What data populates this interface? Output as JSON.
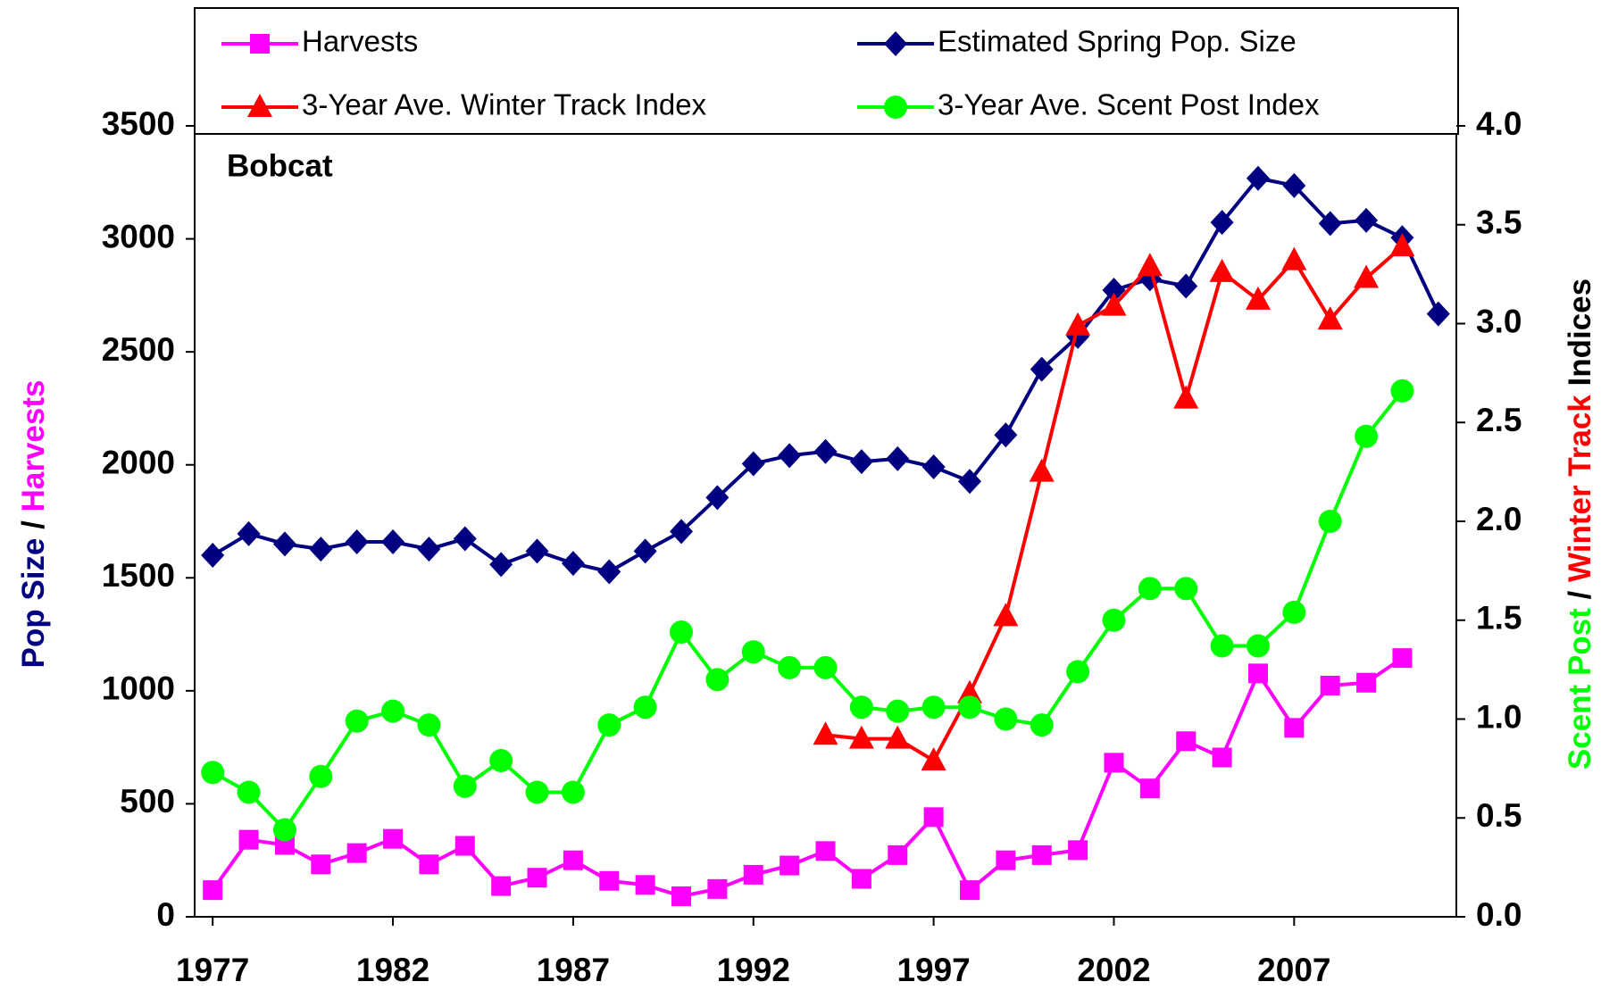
{
  "chart_data": {
    "type": "line",
    "annotation": "Bobcat",
    "y_label": [
      {
        "text": "Pop Size",
        "color": "#000080"
      },
      {
        "text": "/",
        "color": "#000000"
      },
      {
        "text": "Harvests",
        "color": "#ff00ff"
      }
    ],
    "y2_label": [
      {
        "text": "Scent Post",
        "color": "#00ff00"
      },
      {
        "text": "/",
        "color": "#000000"
      },
      {
        "text": "Winter Track",
        "color": "#ff0000"
      },
      {
        "text": "Indices",
        "color": "#000000"
      }
    ],
    "x": [
      1977,
      1978,
      1979,
      1980,
      1981,
      1982,
      1983,
      1984,
      1985,
      1986,
      1987,
      1988,
      1989,
      1990,
      1991,
      1992,
      1993,
      1994,
      1995,
      1996,
      1997,
      1998,
      1999,
      2000,
      2001,
      2002,
      2003,
      2004,
      2005,
      2006,
      2007,
      2008,
      2009,
      2010,
      2011
    ],
    "xlim": [
      1976.5,
      2011.5
    ],
    "xticks": [
      1977,
      1982,
      1987,
      1992,
      1997,
      2002,
      2007
    ],
    "ylim": [
      0,
      3500
    ],
    "yticks": [
      0,
      500,
      1000,
      1500,
      2000,
      2500,
      3000,
      3500
    ],
    "y2lim": [
      0,
      4
    ],
    "y2ticks": [
      {
        "value": 0,
        "label": "0.0"
      },
      0.5,
      {
        "value": 1,
        "label": "1.0"
      },
      1.5,
      {
        "value": 2,
        "label": "2.0"
      },
      2.5,
      {
        "value": 3,
        "label": "3.0"
      },
      3.5,
      {
        "value": 4,
        "label": "4.0"
      }
    ],
    "series": [
      {
        "name": "Harvests",
        "color": "#ff00ff",
        "marker": "square",
        "values": [
          118,
          341,
          318,
          232,
          282,
          345,
          232,
          314,
          136,
          173,
          250,
          159,
          141,
          91,
          123,
          186,
          227,
          291,
          168,
          273,
          441,
          118,
          250,
          273,
          295,
          682,
          568,
          777,
          705,
          1077,
          836,
          1023,
          1036,
          1145,
          null
        ]
      },
      {
        "name": "Estimated Spring Pop. Size",
        "color": "#000080",
        "marker": "diamond",
        "values": [
          1600,
          1695,
          1650,
          1627,
          1659,
          1659,
          1627,
          1673,
          1559,
          1618,
          1564,
          1527,
          1618,
          1705,
          1855,
          2005,
          2041,
          2059,
          2014,
          2027,
          1991,
          1927,
          2132,
          2423,
          2568,
          2773,
          2823,
          2791,
          3073,
          3268,
          3236,
          3068,
          3082,
          3005,
          2668
        ]
      },
      {
        "name": "3-Year Ave. Winter Track Index",
        "color": "#ff0000",
        "marker": "triangle",
        "axis": "y2",
        "values": [
          null,
          null,
          null,
          null,
          null,
          null,
          null,
          null,
          null,
          null,
          null,
          null,
          null,
          null,
          null,
          null,
          null,
          0.92,
          0.9,
          0.9,
          0.79,
          1.13,
          1.52,
          2.25,
          2.99,
          3.09,
          3.29,
          2.62,
          3.26,
          3.12,
          3.32,
          3.02,
          3.23,
          3.39,
          null
        ]
      },
      {
        "name": "3-Year Ave. Scent Post Index",
        "color": "#00ff00",
        "marker": "circle",
        "axis": "y2",
        "values": [
          0.73,
          0.63,
          0.44,
          0.71,
          0.99,
          1.04,
          0.97,
          0.66,
          0.79,
          0.63,
          0.63,
          0.97,
          1.06,
          1.44,
          1.2,
          1.34,
          1.26,
          1.26,
          1.06,
          1.04,
          1.06,
          1.06,
          1.0,
          0.97,
          1.24,
          1.5,
          1.66,
          1.66,
          1.37,
          1.37,
          1.54,
          2.0,
          2.43,
          2.66,
          null
        ]
      }
    ]
  }
}
